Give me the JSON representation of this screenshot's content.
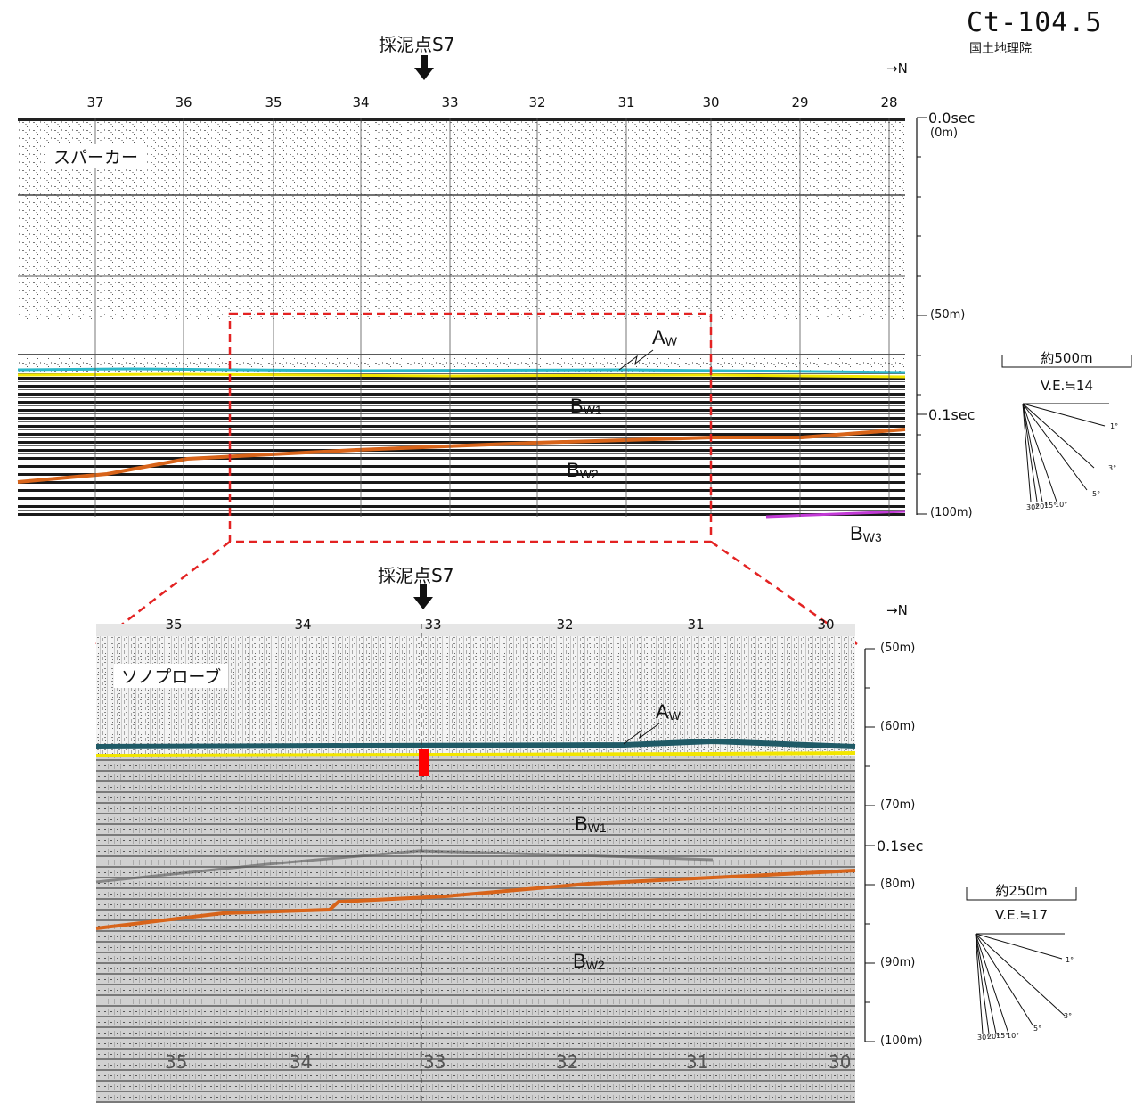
{
  "header": {
    "title": "Ct-104.5",
    "org": "国土地理院"
  },
  "colors": {
    "seabed": "#2bb7c8",
    "seabed_dark": "#1f5a66",
    "aw_base": "#f2e600",
    "bw1_base": "#d8641a",
    "bw3_top": "#c23ad6",
    "zoom_box": "#e32222",
    "sample_marker": "#ff0000"
  },
  "top_panel": {
    "label": "スパーカー",
    "north": "→N",
    "sample_label": "採泥点S7",
    "fixes": [
      "37",
      "36",
      "35",
      "34",
      "33",
      "32",
      "31",
      "30",
      "29",
      "28"
    ],
    "axis": {
      "t0": "0.0sec",
      "t0_depth": "(0m)",
      "d50": "(50m)",
      "t01": "0.1sec",
      "d100": "(100m)"
    },
    "units": {
      "aw": "A",
      "aw_sub": "W",
      "bw1": "B",
      "bw1_sub": "W1",
      "bw2": "B",
      "bw2_sub": "W2",
      "bw3": "B",
      "bw3_sub": "W3"
    },
    "scale": {
      "distance": "約500m",
      "ve": "V.E.≒14",
      "angles": [
        "1°",
        "3°",
        "5°",
        "10°",
        "15°",
        "20°",
        "30°"
      ]
    }
  },
  "bottom_panel": {
    "label": "ソノプローブ",
    "north": "→N",
    "sample_label": "採泥点S7",
    "fixes": [
      "35",
      "34",
      "33",
      "32",
      "31",
      "30"
    ],
    "bottom_fixes": [
      "35",
      "34",
      "33",
      "32",
      "31",
      "30"
    ],
    "axis": {
      "d50": "(50m)",
      "d60": "(60m)",
      "d70": "(70m)",
      "t01": "0.1sec",
      "d80": "(80m)",
      "d90": "(90m)",
      "d100": "(100m)"
    },
    "units": {
      "aw": "A",
      "aw_sub": "W",
      "bw1": "B",
      "bw1_sub": "W1",
      "bw2": "B",
      "bw2_sub": "W2"
    },
    "scale": {
      "distance": "約250m",
      "ve": "V.E.≒17",
      "angles": [
        "1°",
        "3°",
        "5°",
        "10°",
        "15°",
        "20°",
        "30°"
      ]
    }
  }
}
